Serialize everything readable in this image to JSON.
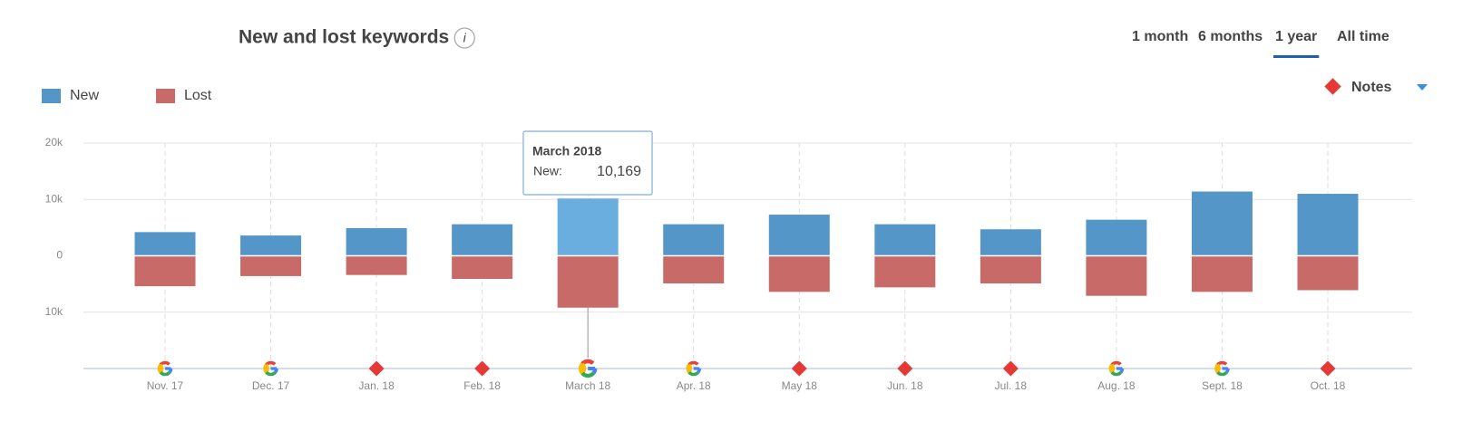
{
  "chart_data": {
    "type": "diverging-bar",
    "title": "New and lost keywords",
    "periods": [
      "1 month",
      "6 months",
      "1 year",
      "All time"
    ],
    "active_period": 2,
    "notes_label": "Notes",
    "categories": [
      "Nov. 17",
      "Dec. 17",
      "Jan. 18",
      "Feb. 18",
      "March 18",
      "Apr. 18",
      "May 18",
      "Jun. 18",
      "Jul. 18",
      "Aug. 18",
      "Sept. 18",
      "Oct. 18"
    ],
    "markers": [
      "google",
      "google",
      "note",
      "note",
      "google",
      "google",
      "note",
      "note",
      "note",
      "google",
      "google",
      "note"
    ],
    "series": [
      {
        "name": "New",
        "color": "#5596c9",
        "highlight_color": "#6aaee0",
        "values": [
          4200,
          3600,
          4900,
          5600,
          10169,
          5600,
          7300,
          5600,
          4700,
          6400,
          11400,
          11000
        ],
        "value_labels": [
          null,
          null,
          null,
          null,
          "10,169",
          null,
          null,
          null,
          null,
          null,
          null,
          null
        ]
      },
      {
        "name": "Lost",
        "color": "#c86b68",
        "highlight_color": "#c86b68",
        "values": [
          -5400,
          -3600,
          -3400,
          -4100,
          -9200,
          -4900,
          -6400,
          -5600,
          -4900,
          -7100,
          -6400,
          -6100
        ]
      }
    ],
    "highlight_index": 4,
    "tooltip": {
      "title": "March 2018",
      "series_label": "New:"
    },
    "ylim": [
      -20000,
      20000
    ],
    "yticks": [
      {
        "value": 20000,
        "label": "20k"
      },
      {
        "value": 10000,
        "label": "10k"
      },
      0,
      {
        "value": -10000,
        "label": "10k"
      }
    ],
    "grid": true
  }
}
